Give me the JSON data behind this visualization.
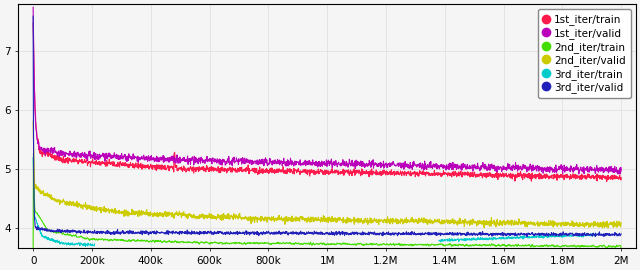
{
  "xlim": [
    -50000,
    2050000
  ],
  "ylim": [
    3.65,
    7.8
  ],
  "yticks": [
    4,
    5,
    6,
    7
  ],
  "xtick_labels": [
    "0",
    "200k",
    "400k",
    "600k",
    "800k",
    "1M",
    "1.2M",
    "1.4M",
    "1.6M",
    "1.8M",
    "2M"
  ],
  "xtick_values": [
    0,
    200000,
    400000,
    600000,
    800000,
    1000000,
    1200000,
    1400000,
    1600000,
    1800000,
    2000000
  ],
  "legend_labels": [
    "1st_iter/train",
    "1st_iter/valid",
    "2nd_iter/train",
    "2nd_iter/valid",
    "3rd_iter/train",
    "3rd_iter/valid"
  ],
  "colors": {
    "1st_train": "#FF1A4D",
    "1st_valid": "#BB00BB",
    "2nd_train": "#44DD00",
    "2nd_valid": "#CCCC00",
    "3rd_train": "#00CCCC",
    "3rd_valid": "#2222BB"
  },
  "background_color": "#f5f5f5",
  "grid_color": "#dddddd"
}
